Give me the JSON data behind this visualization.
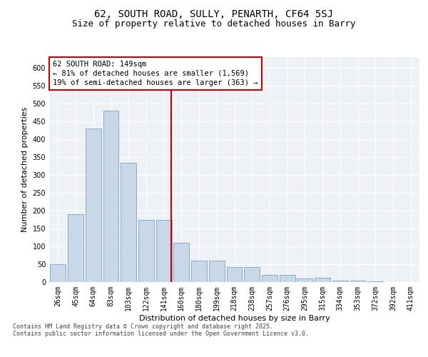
{
  "title1": "62, SOUTH ROAD, SULLY, PENARTH, CF64 5SJ",
  "title2": "Size of property relative to detached houses in Barry",
  "xlabel": "Distribution of detached houses by size in Barry",
  "ylabel": "Number of detached properties",
  "bar_values": [
    50,
    190,
    430,
    480,
    335,
    175,
    175,
    110,
    60,
    60,
    43,
    43,
    20,
    20,
    10,
    12,
    5,
    5,
    2,
    1,
    0
  ],
  "bar_labels": [
    "26sqm",
    "45sqm",
    "64sqm",
    "83sqm",
    "103sqm",
    "122sqm",
    "141sqm",
    "160sqm",
    "180sqm",
    "199sqm",
    "218sqm",
    "238sqm",
    "257sqm",
    "276sqm",
    "295sqm",
    "315sqm",
    "334sqm",
    "353sqm",
    "372sqm",
    "392sqm",
    "411sqm"
  ],
  "bar_color": "#c8d8e8",
  "bar_edge_color": "#6699bb",
  "vline_color": "#cc0000",
  "annotation_text": "62 SOUTH ROAD: 149sqm\n← 81% of detached houses are smaller (1,569)\n19% of semi-detached houses are larger (363) →",
  "annotation_box_color": "#ffffff",
  "annotation_box_edge": "#cc0000",
  "bg_color": "#eef2f6",
  "grid_color": "#ffffff",
  "ylim": [
    0,
    630
  ],
  "yticks": [
    0,
    50,
    100,
    150,
    200,
    250,
    300,
    350,
    400,
    450,
    500,
    550,
    600
  ],
  "footer_line1": "Contains HM Land Registry data © Crown copyright and database right 2025.",
  "footer_line2": "Contains public sector information licensed under the Open Government Licence v3.0.",
  "title_fontsize": 10,
  "subtitle_fontsize": 9,
  "tick_fontsize": 7,
  "ylabel_fontsize": 8,
  "xlabel_fontsize": 8,
  "annot_fontsize": 7.5,
  "footer_fontsize": 6
}
